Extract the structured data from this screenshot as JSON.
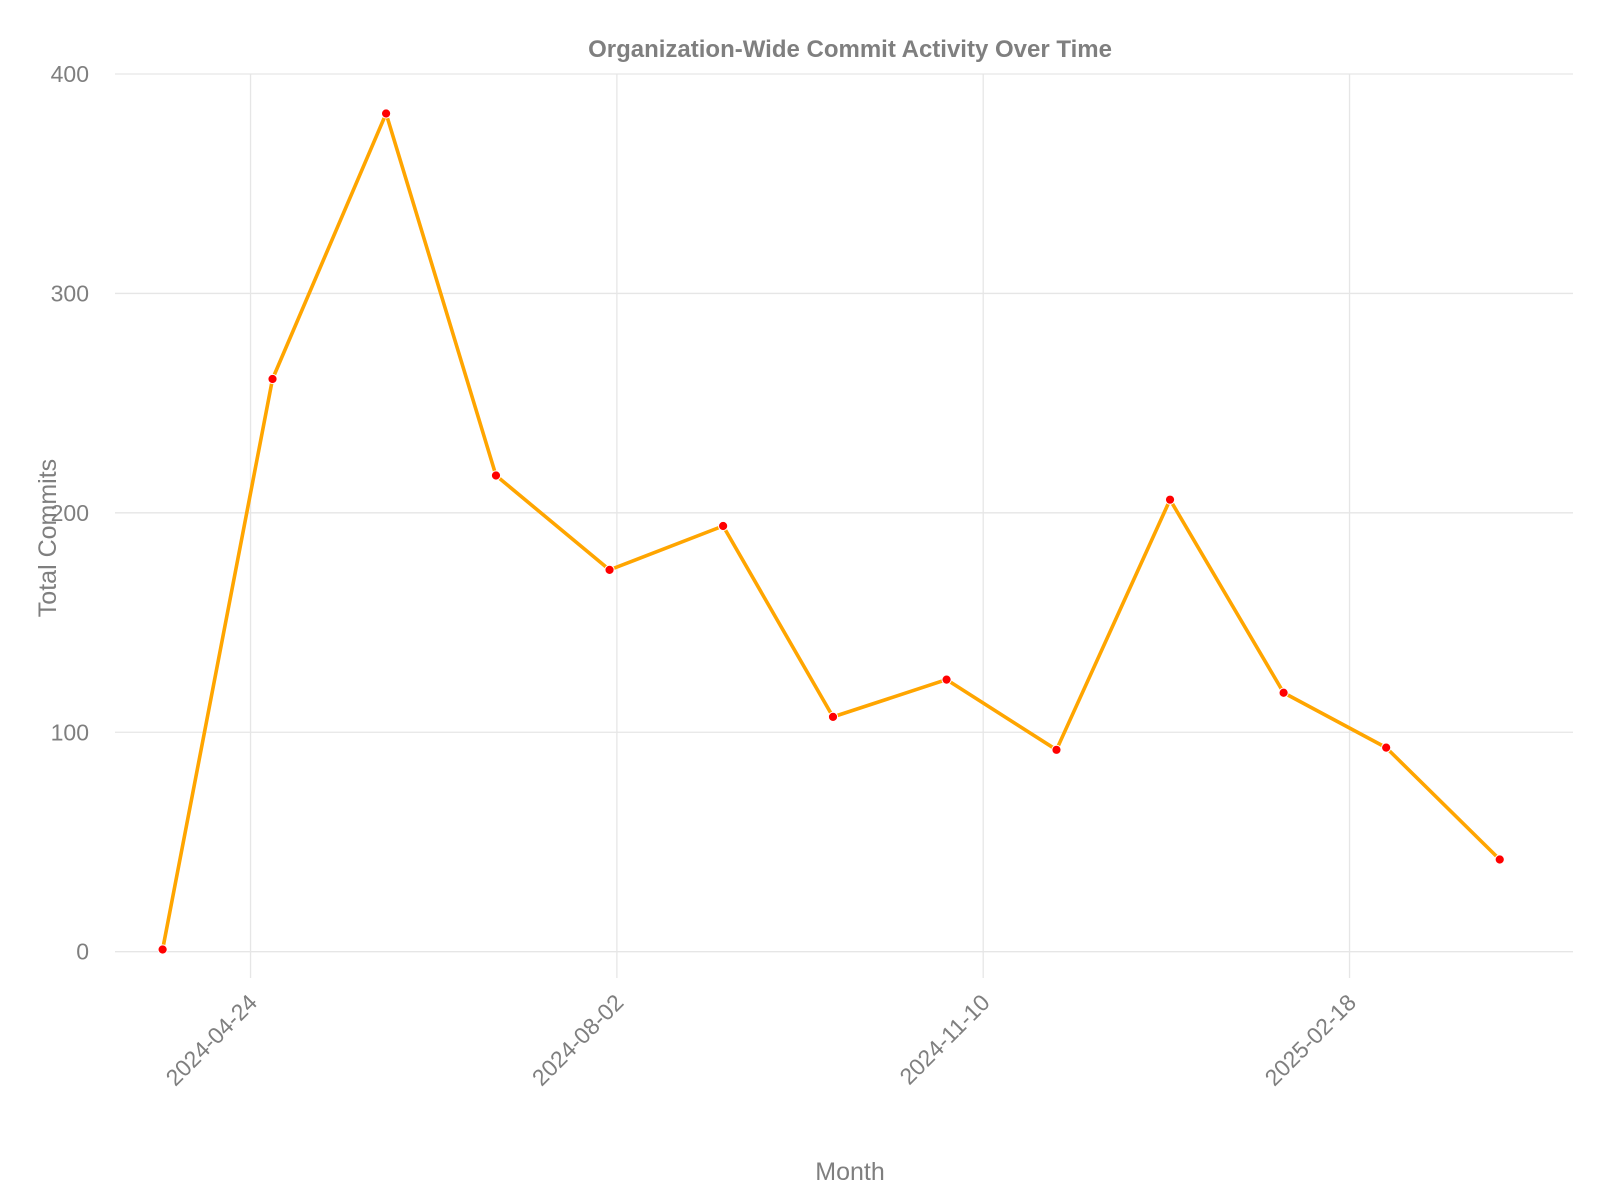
{
  "chart_data": {
    "type": "line",
    "title": "Organization-Wide Commit Activity Over Time",
    "xlabel": "Month",
    "ylabel": "Total Commits",
    "x_type": "date",
    "x": [
      "2024-03-31",
      "2024-04-30",
      "2024-05-31",
      "2024-06-30",
      "2024-07-31",
      "2024-08-31",
      "2024-09-30",
      "2024-10-31",
      "2024-11-30",
      "2024-12-31",
      "2025-01-31",
      "2025-02-28",
      "2025-03-31"
    ],
    "series": [
      {
        "values": [
          1,
          261,
          382,
          217,
          174,
          194,
          107,
          124,
          92,
          206,
          118,
          93,
          42
        ]
      }
    ],
    "xlim": [
      "2024-03-18",
      "2025-04-20"
    ],
    "ylim": [
      -12,
      400
    ],
    "x_ticks": [
      "2024-04-24",
      "2024-08-02",
      "2024-11-10",
      "2025-02-18"
    ],
    "y_ticks": [
      0,
      100,
      200,
      300,
      400
    ],
    "grid": true,
    "legend": "none",
    "colors": {
      "line": "#FFA500",
      "points": "#FF0000",
      "grid": "#E6E6E6",
      "text": "#7F7F7F",
      "background": "#FFFFFF"
    }
  }
}
